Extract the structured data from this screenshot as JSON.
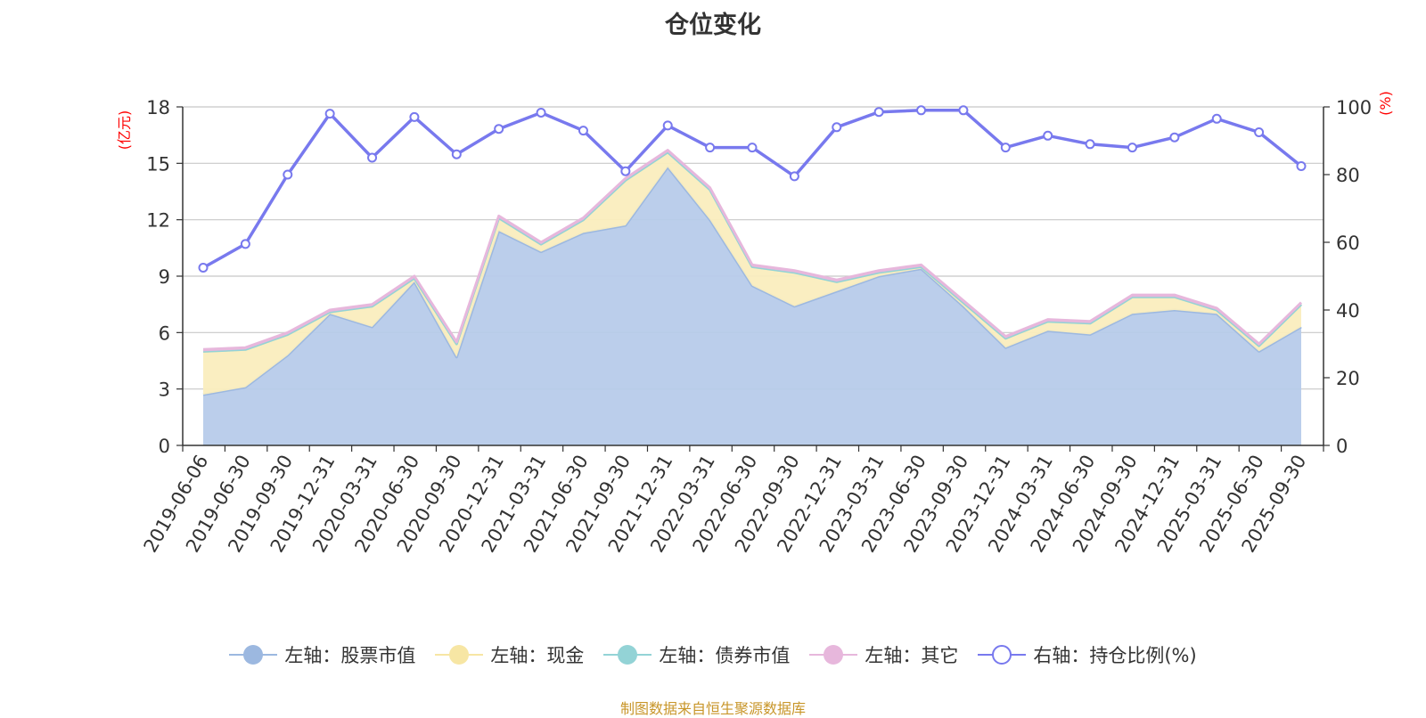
{
  "title": "仓位变化",
  "source_text": "制图数据来自恒生聚源数据库",
  "colors": {
    "stock": "#9cb8e0",
    "stock_fill": "#b7cbea",
    "cash": "#f7e6a4",
    "cash_fill": "#faedbe",
    "bond": "#93d3d6",
    "other": "#e7b7dc",
    "ratio": "#7879ee",
    "axis_unit": "#ff0000"
  },
  "legend": [
    {
      "key": "stock",
      "label": "左轴：股票市值"
    },
    {
      "key": "cash",
      "label": "左轴：现金"
    },
    {
      "key": "bond",
      "label": "左轴：债券市值"
    },
    {
      "key": "other",
      "label": "左轴：其它"
    },
    {
      "key": "ratio",
      "label": "右轴：持仓比例(%)"
    }
  ],
  "chart_data": {
    "type": "area",
    "title": "仓位变化",
    "ylabel_left": "(亿元)",
    "ylabel_right": "(%)",
    "ylim_left": [
      0,
      18
    ],
    "ylim_right": [
      0,
      100
    ],
    "yticks_left": [
      0,
      3,
      6,
      9,
      12,
      15,
      18
    ],
    "yticks_right": [
      0,
      20,
      40,
      60,
      80,
      100
    ],
    "categories": [
      "2019-06-06",
      "2019-06-30",
      "2019-09-30",
      "2019-12-31",
      "2020-03-31",
      "2020-06-30",
      "2020-09-30",
      "2020-12-31",
      "2021-03-31",
      "2021-06-30",
      "2021-09-30",
      "2021-12-31",
      "2022-03-31",
      "2022-06-30",
      "2022-09-30",
      "2022-12-31",
      "2023-03-31",
      "2023-06-30",
      "2023-09-30",
      "2023-12-31",
      "2024-03-31",
      "2024-06-30",
      "2024-09-30",
      "2024-12-31",
      "2025-03-31",
      "2025-06-30",
      "2025-09-30"
    ],
    "series": [
      {
        "name": "左轴：股票市值",
        "axis": "left",
        "stack": true,
        "values": [
          2.7,
          3.1,
          4.8,
          7.0,
          6.3,
          8.7,
          4.7,
          11.4,
          10.3,
          11.3,
          11.7,
          14.8,
          12.0,
          8.5,
          7.4,
          8.2,
          9.0,
          9.4,
          7.4,
          5.2,
          6.1,
          5.9,
          7.0,
          7.2,
          7.0,
          5.0,
          6.3
        ]
      },
      {
        "name": "左轴：现金",
        "axis": "left",
        "stack": true,
        "values": [
          2.3,
          2.0,
          1.1,
          0.1,
          1.1,
          0.2,
          0.7,
          0.7,
          0.4,
          0.7,
          2.4,
          0.8,
          1.6,
          1.0,
          1.8,
          0.5,
          0.2,
          0.1,
          0.2,
          0.5,
          0.5,
          0.6,
          0.9,
          0.7,
          0.2,
          0.3,
          1.2
        ]
      },
      {
        "name": "左轴：债券市值",
        "axis": "left",
        "stack": true,
        "values": [
          0,
          0,
          0,
          0,
          0,
          0,
          0,
          0,
          0,
          0,
          0,
          0,
          0,
          0,
          0,
          0,
          0,
          0,
          0,
          0,
          0,
          0,
          0,
          0,
          0,
          0,
          0
        ]
      },
      {
        "name": "左轴：其它",
        "axis": "left",
        "stack": true,
        "values": [
          0.1,
          0.1,
          0.1,
          0.1,
          0.1,
          0.1,
          0.1,
          0.1,
          0.1,
          0.1,
          0.1,
          0.1,
          0.1,
          0.1,
          0.1,
          0.1,
          0.1,
          0.1,
          0.1,
          0.1,
          0.1,
          0.1,
          0.1,
          0.1,
          0.1,
          0.1,
          0.1
        ]
      },
      {
        "name": "右轴：持仓比例(%)",
        "axis": "right",
        "type": "line",
        "values": [
          52.5,
          59.5,
          80.0,
          98.0,
          85.0,
          97.0,
          86.0,
          93.5,
          98.3,
          93.0,
          81.0,
          94.5,
          88.0,
          88.0,
          79.5,
          94.0,
          98.5,
          99.0,
          99.0,
          88.0,
          91.5,
          89.0,
          88.0,
          91.0,
          96.5,
          92.5,
          82.5
        ]
      }
    ]
  }
}
